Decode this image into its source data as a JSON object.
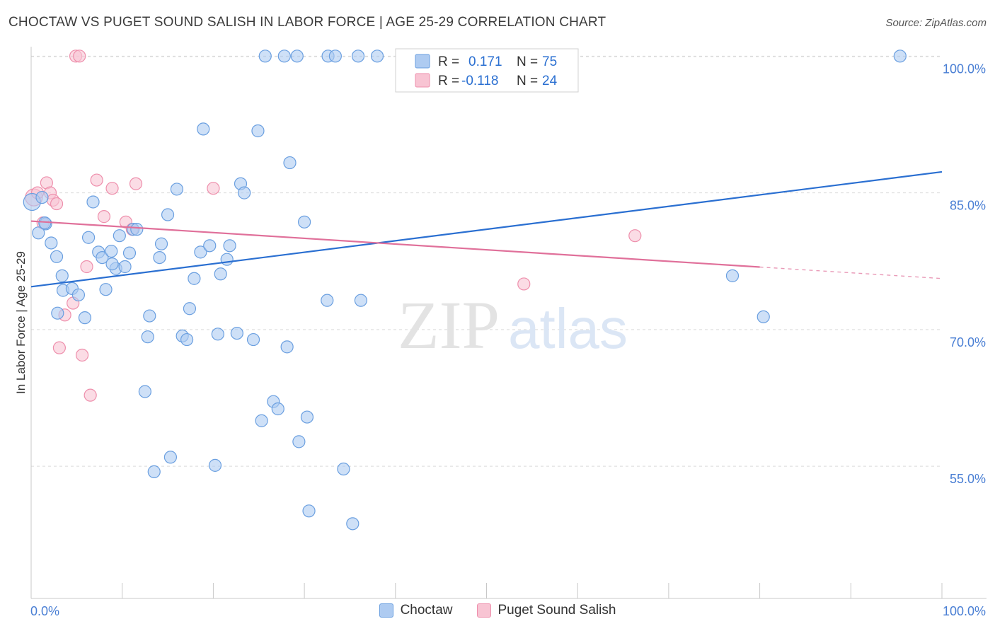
{
  "header": {
    "title": "CHOCTAW VS PUGET SOUND SALISH IN LABOR FORCE | AGE 25-29 CORRELATION CHART",
    "source": "Source: ZipAtlas.com"
  },
  "watermark": {
    "zip": "ZIP",
    "atlas": "atlas"
  },
  "colors": {
    "choctaw_fill": "#aecbf1",
    "choctaw_stroke": "#6a9fe0",
    "choctaw_line": "#2a6fd1",
    "salish_fill": "#f8c4d3",
    "salish_stroke": "#ee8fac",
    "salish_line": "#e0709a",
    "grid": "#d9d9d9",
    "axis_label": "#4a7fd4"
  },
  "legend": {
    "rows": [
      {
        "r_label": "R =",
        "r_value": "0.171",
        "n_label": "N =",
        "n_value": "75"
      },
      {
        "r_label": "R =",
        "r_value": "-0.118",
        "n_label": "N =",
        "n_value": "24"
      }
    ]
  },
  "chart_data": {
    "type": "scatter",
    "title": "CHOCTAW VS PUGET SOUND SALISH IN LABOR FORCE | AGE 25-29 CORRELATION CHART",
    "xlabel": "",
    "ylabel": "In Labor Force | Age 25-29",
    "xlim": [
      0,
      100
    ],
    "ylim": [
      40.5,
      101.5
    ],
    "x_tick_labels": [
      {
        "value": 0,
        "label": "0.0%"
      },
      {
        "value": 100,
        "label": "100.0%"
      }
    ],
    "y_tick_labels": [
      {
        "value": 100,
        "label": "100.0%"
      },
      {
        "value": 85,
        "label": "85.0%"
      },
      {
        "value": 70,
        "label": "70.0%"
      },
      {
        "value": 55,
        "label": "55.0%"
      }
    ],
    "series": [
      {
        "name": "Choctaw",
        "r": 0.171,
        "n": 75,
        "trend": {
          "x0": 0,
          "y0": 74.7,
          "x1": 100,
          "y1": 87.3,
          "dash_from": null
        },
        "points": [
          [
            0.1,
            84.0
          ],
          [
            0.8,
            80.6
          ],
          [
            1.6,
            81.6
          ],
          [
            2.8,
            78.0
          ],
          [
            3.4,
            75.9
          ],
          [
            3.5,
            74.3
          ],
          [
            4.5,
            74.5
          ],
          [
            5.2,
            73.8
          ],
          [
            5.9,
            71.3
          ],
          [
            6.3,
            80.1
          ],
          [
            6.8,
            84.0
          ],
          [
            7.4,
            78.5
          ],
          [
            7.8,
            77.9
          ],
          [
            8.2,
            74.4
          ],
          [
            8.8,
            78.6
          ],
          [
            9.3,
            76.7
          ],
          [
            9.7,
            80.3
          ],
          [
            10.3,
            76.9
          ],
          [
            10.8,
            78.4
          ],
          [
            11.2,
            81.0
          ],
          [
            11.6,
            81.0
          ],
          [
            12.5,
            63.2
          ],
          [
            12.8,
            69.2
          ],
          [
            13.0,
            71.5
          ],
          [
            13.5,
            54.4
          ],
          [
            14.1,
            77.9
          ],
          [
            14.3,
            79.4
          ],
          [
            15.0,
            82.6
          ],
          [
            15.3,
            56.0
          ],
          [
            16.0,
            85.4
          ],
          [
            16.6,
            69.3
          ],
          [
            17.1,
            68.9
          ],
          [
            17.4,
            72.3
          ],
          [
            17.9,
            75.6
          ],
          [
            18.6,
            78.5
          ],
          [
            18.9,
            92.0
          ],
          [
            19.6,
            79.2
          ],
          [
            20.2,
            55.1
          ],
          [
            20.5,
            69.5
          ],
          [
            20.8,
            76.1
          ],
          [
            21.5,
            77.7
          ],
          [
            21.8,
            79.2
          ],
          [
            22.6,
            69.6
          ],
          [
            23.0,
            86.0
          ],
          [
            23.4,
            85.0
          ],
          [
            24.4,
            68.9
          ],
          [
            24.9,
            91.8
          ],
          [
            25.3,
            60.0
          ],
          [
            25.7,
            100.0
          ],
          [
            26.6,
            62.1
          ],
          [
            27.1,
            61.3
          ],
          [
            27.8,
            100.0
          ],
          [
            28.1,
            68.1
          ],
          [
            28.4,
            88.3
          ],
          [
            29.2,
            100.0
          ],
          [
            29.4,
            57.7
          ],
          [
            30.0,
            81.8
          ],
          [
            30.3,
            60.4
          ],
          [
            30.5,
            50.1
          ],
          [
            32.5,
            73.2
          ],
          [
            32.6,
            100.0
          ],
          [
            33.4,
            100.0
          ],
          [
            34.3,
            54.7
          ],
          [
            35.3,
            48.7
          ],
          [
            35.9,
            100.0
          ],
          [
            36.2,
            73.2
          ],
          [
            38.0,
            100.0
          ],
          [
            77.0,
            75.9
          ],
          [
            80.4,
            71.4
          ],
          [
            95.4,
            100.0
          ],
          [
            1.2,
            84.5
          ],
          [
            2.2,
            79.5
          ],
          [
            2.9,
            71.8
          ],
          [
            1.5,
            81.7
          ],
          [
            8.9,
            77.2
          ]
        ]
      },
      {
        "name": "Puget Sound Salish",
        "r": -0.118,
        "n": 24,
        "trend": {
          "x0": 0,
          "y0": 81.9,
          "x1": 100,
          "y1": 75.6,
          "dash_from": 80
        },
        "points": [
          [
            0.3,
            84.5
          ],
          [
            0.7,
            85.0
          ],
          [
            1.3,
            81.7
          ],
          [
            1.7,
            86.1
          ],
          [
            2.1,
            85.0
          ],
          [
            2.4,
            84.2
          ],
          [
            2.8,
            83.8
          ],
          [
            3.1,
            68.0
          ],
          [
            3.7,
            71.6
          ],
          [
            4.6,
            72.9
          ],
          [
            4.9,
            100.0
          ],
          [
            5.3,
            100.0
          ],
          [
            5.6,
            67.2
          ],
          [
            6.1,
            76.9
          ],
          [
            6.5,
            62.8
          ],
          [
            7.2,
            86.4
          ],
          [
            8.0,
            82.4
          ],
          [
            8.9,
            85.5
          ],
          [
            10.4,
            81.8
          ],
          [
            11.1,
            81.0
          ],
          [
            11.5,
            86.0
          ],
          [
            20.0,
            85.5
          ],
          [
            54.1,
            75.0
          ],
          [
            66.3,
            80.3
          ]
        ]
      }
    ]
  },
  "bottom_legend": {
    "items": [
      {
        "label": "Choctaw"
      },
      {
        "label": "Puget Sound Salish"
      }
    ]
  }
}
